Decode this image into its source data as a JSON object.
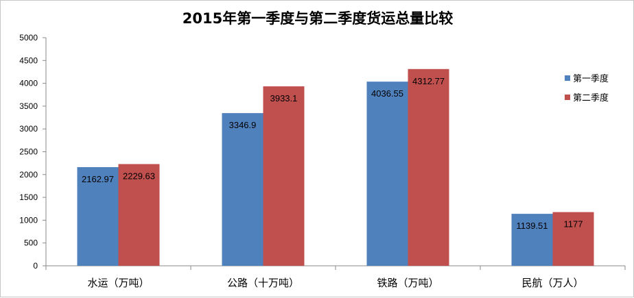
{
  "chart_data": {
    "type": "bar",
    "title": "2015年第一季度与第二季度货运总量比较",
    "categories": [
      "水运（万吨）",
      "公路（十万吨）",
      "铁路（万吨）",
      "民航（万人）"
    ],
    "series": [
      {
        "name": "第一季度",
        "color": "#4f81bd",
        "values": [
          2162.97,
          3346.9,
          4036.55,
          1139.51
        ],
        "labels": [
          "2162.97",
          "3346.9",
          "4036.55",
          "1139.51"
        ]
      },
      {
        "name": "第二季度",
        "color": "#c0504d",
        "values": [
          2229.63,
          3933.1,
          4312.77,
          1177
        ],
        "labels": [
          "2229.63",
          "3933.1",
          "4312.77",
          "1177"
        ]
      }
    ],
    "yticks": [
      "0",
      "500",
      "1000",
      "1500",
      "2000",
      "2500",
      "3000",
      "3500",
      "4000",
      "4500",
      "5000"
    ],
    "ylim": [
      0,
      5000
    ],
    "xlabel": "",
    "ylabel": "",
    "grid": false,
    "legend_position": "right"
  }
}
